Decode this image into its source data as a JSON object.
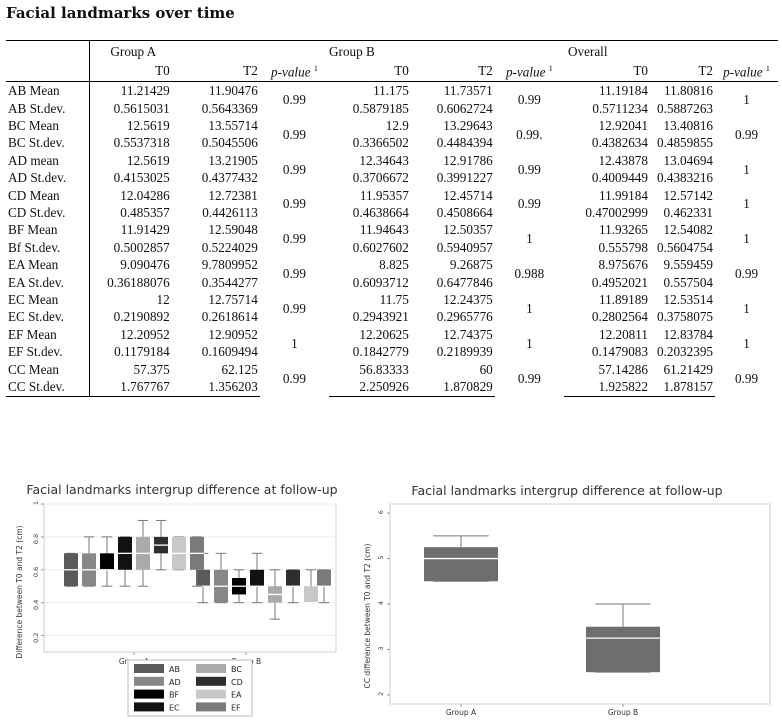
{
  "heading": "Facial landmarks over time",
  "table": {
    "groups": [
      "Group A",
      "Group B",
      "Overall"
    ],
    "subheaders": [
      "T0",
      "T2",
      "p-value",
      "T0",
      "T2",
      "p-value",
      "T0",
      "T2",
      "p-value"
    ],
    "pvalue_label": "p-value",
    "pvalue_sup": "1",
    "rows": [
      {
        "mean_label": "AB Mean",
        "sd_label": "AB St.dev.",
        "a_t0_mean": "11.21429",
        "a_t2_mean": "11.90476",
        "a_t0_sd": "0.5615031",
        "a_t2_sd": "0.5643369",
        "a_p": "0.99",
        "b_t0_mean": "11.175",
        "b_t2_mean": "11.73571",
        "b_t0_sd": "0.5879185",
        "b_t2_sd": "0.6062724",
        "b_p": "0.99",
        "o_t0_mean": "11.19184",
        "o_t2_mean": "11.80816",
        "o_t0_sd": "0.5711234",
        "o_t2_sd": "0.5887263",
        "o_p": "1"
      },
      {
        "mean_label": "BC Mean",
        "sd_label": "BC St.dev.",
        "a_t0_mean": "12.5619",
        "a_t2_mean": "13.55714",
        "a_t0_sd": "0.5537318",
        "a_t2_sd": "0.5045506",
        "a_p": "0.99",
        "b_t0_mean": "12.9",
        "b_t2_mean": "13.29643",
        "b_t0_sd": "0.3366502",
        "b_t2_sd": "0.4484394",
        "b_p": "0.99.",
        "o_t0_mean": "12.92041",
        "o_t2_mean": "13.40816",
        "o_t0_sd": "0.4382634",
        "o_t2_sd": "0.4859855",
        "o_p": "0.99"
      },
      {
        "mean_label": "AD mean",
        "sd_label": "AD St.dev.",
        "a_t0_mean": "12.5619",
        "a_t2_mean": "13.21905",
        "a_t0_sd": "0.4153025",
        "a_t2_sd": "0.4377432",
        "a_p": "0.99",
        "b_t0_mean": "12.34643",
        "b_t2_mean": "12.91786",
        "b_t0_sd": "0.3706672",
        "b_t2_sd": "0.3991227",
        "b_p": "0.99",
        "o_t0_mean": "12.43878",
        "o_t2_mean": "13.04694",
        "o_t0_sd": "0.4009449",
        "o_t2_sd": "0.4383216",
        "o_p": "1"
      },
      {
        "mean_label": "CD Mean",
        "sd_label": "CD St.dev.",
        "a_t0_mean": "12.04286",
        "a_t2_mean": "12.72381",
        "a_t0_sd": "0.485357",
        "a_t2_sd": "0.4426113",
        "a_p": "0.99",
        "b_t0_mean": "11.95357",
        "b_t2_mean": "12.45714",
        "b_t0_sd": "0.4638664",
        "b_t2_sd": "0.4508664",
        "b_p": "0.99",
        "o_t0_mean": "11.99184",
        "o_t2_mean": "12.57142",
        "o_t0_sd": "0.47002999",
        "o_t2_sd": "0.462331",
        "o_p": "1"
      },
      {
        "mean_label": "BF Mean",
        "sd_label": "Bf St.dev.",
        "a_t0_mean": "11.91429",
        "a_t2_mean": "12.59048",
        "a_t0_sd": "0.5002857",
        "a_t2_sd": "0.5224029",
        "a_p": "0.99",
        "b_t0_mean": "11.94643",
        "b_t2_mean": "12.50357",
        "b_t0_sd": "0.6027602",
        "b_t2_sd": "0.5940957",
        "b_p": "1",
        "o_t0_mean": "11.93265",
        "o_t2_mean": "12.54082",
        "o_t0_sd": "0.555798",
        "o_t2_sd": "0.5604754",
        "o_p": "1"
      },
      {
        "mean_label": "EA Mean",
        "sd_label": "EA St.dev.",
        "a_t0_mean": "9.090476",
        "a_t2_mean": "9.7809952",
        "a_t0_sd": "0.36188076",
        "a_t2_sd": "0.3544277",
        "a_p": "0.99",
        "b_t0_mean": "8.825",
        "b_t2_mean": "9.26875",
        "b_t0_sd": "0.6093712",
        "b_t2_sd": "0.6477846",
        "b_p": "0.988",
        "o_t0_mean": "8.975676",
        "o_t2_mean": "9.559459",
        "o_t0_sd": "0.4952021",
        "o_t2_sd": "0.557504",
        "o_p": "0.99"
      },
      {
        "mean_label": "EC Mean",
        "sd_label": "EC St.dev.",
        "a_t0_mean": "12",
        "a_t2_mean": "12.75714",
        "a_t0_sd": "0.2190892",
        "a_t2_sd": "0.2618614",
        "a_p": "0.99",
        "b_t0_mean": "11.75",
        "b_t2_mean": "12.24375",
        "b_t0_sd": "0.2943921",
        "b_t2_sd": "0.2965776",
        "b_p": "1",
        "o_t0_mean": "11.89189",
        "o_t2_mean": "12.53514",
        "o_t0_sd": "0.2802564",
        "o_t2_sd": "0.3758075",
        "o_p": "1"
      },
      {
        "mean_label": "EF Mean",
        "sd_label": "EF St.dev.",
        "a_t0_mean": "12.20952",
        "a_t2_mean": "12.90952",
        "a_t0_sd": "0.1179184",
        "a_t2_sd": "0.1609494",
        "a_p": "1",
        "b_t0_mean": "12.20625",
        "b_t2_mean": "12.74375",
        "b_t0_sd": "0.1842779",
        "b_t2_sd": "0.2189939",
        "b_p": "1",
        "o_t0_mean": "12.20811",
        "o_t2_mean": "12.83784",
        "o_t0_sd": "0.1479083",
        "o_t2_sd": "0.2032395",
        "o_p": "1"
      },
      {
        "mean_label": "CC Mean",
        "sd_label": "CC St.dev.",
        "a_t0_mean": "57.375",
        "a_t2_mean": "62.125",
        "a_t0_sd": "1.767767",
        "a_t2_sd": "1.356203",
        "a_p": "0.99",
        "b_t0_mean": "56.83333",
        "b_t2_mean": "60",
        "b_t0_sd": "2.250926",
        "b_t2_sd": "1.870829",
        "b_p": "0.99",
        "o_t0_mean": "57.14286",
        "o_t2_mean": "61.21429",
        "o_t0_sd": "1.925822",
        "o_t2_sd": "1.878157",
        "o_p": "0.99"
      }
    ]
  },
  "chart_data": [
    {
      "type": "box",
      "title": "Facial landmarks intergrup difference at follow-up",
      "ylabel": "Difference between T0 and T2 (cm)",
      "ylim": [
        0.1,
        1.0
      ],
      "yticks": [
        "0.2",
        "0.4",
        "0.6",
        "0.8",
        "1"
      ],
      "categories": [
        "Group A",
        "Group B"
      ],
      "legend_placement": "bottom",
      "series": [
        {
          "name": "AB",
          "color": "#5a5a5a",
          "boxes": [
            {
              "min": 0.5,
              "q1": 0.5,
              "median": 0.6,
              "q3": 0.7,
              "max": 0.7
            },
            {
              "min": 0.4,
              "q1": 0.5,
              "median": 0.5,
              "q3": 0.6,
              "max": 0.7
            }
          ]
        },
        {
          "name": "AD",
          "color": "#888888",
          "boxes": [
            {
              "min": 0.5,
              "q1": 0.5,
              "median": 0.6,
              "q3": 0.7,
              "max": 0.8
            },
            {
              "min": 0.4,
              "q1": 0.4,
              "median": 0.5,
              "q3": 0.6,
              "max": 0.7
            }
          ]
        },
        {
          "name": "BF",
          "color": "#000000",
          "boxes": [
            {
              "min": 0.5,
              "q1": 0.6,
              "median": 0.6,
              "q3": 0.7,
              "max": 0.8
            },
            {
              "min": 0.4,
              "q1": 0.45,
              "median": 0.5,
              "q3": 0.55,
              "max": 0.6
            }
          ]
        },
        {
          "name": "EC",
          "color": "#111111",
          "boxes": [
            {
              "min": 0.5,
              "q1": 0.6,
              "median": 0.7,
              "q3": 0.8,
              "max": 0.8
            },
            {
              "min": 0.4,
              "q1": 0.5,
              "median": 0.5,
              "q3": 0.6,
              "max": 0.7
            }
          ]
        },
        {
          "name": "BC",
          "color": "#aaaaaa",
          "boxes": [
            {
              "min": 0.5,
              "q1": 0.6,
              "median": 0.7,
              "q3": 0.8,
              "max": 0.9
            },
            {
              "min": 0.3,
              "q1": 0.4,
              "median": 0.45,
              "q3": 0.5,
              "max": 0.6
            }
          ]
        },
        {
          "name": "CD",
          "color": "#2e2e2e",
          "boxes": [
            {
              "min": 0.6,
              "q1": 0.7,
              "median": 0.75,
              "q3": 0.8,
              "max": 0.9
            },
            {
              "min": 0.4,
              "q1": 0.5,
              "median": 0.5,
              "q3": 0.6,
              "max": 0.6
            }
          ]
        },
        {
          "name": "EA",
          "color": "#c8c8c8",
          "boxes": [
            {
              "min": 0.6,
              "q1": 0.6,
              "median": 0.7,
              "q3": 0.8,
              "max": 0.8
            },
            {
              "min": 0.4,
              "q1": 0.4,
              "median": 0.4,
              "q3": 0.5,
              "max": 0.6
            }
          ]
        },
        {
          "name": "EF",
          "color": "#7a7a7a",
          "boxes": [
            {
              "min": 0.5,
              "q1": 0.6,
              "median": 0.7,
              "q3": 0.8,
              "max": 0.8
            },
            {
              "min": 0.4,
              "q1": 0.5,
              "median": 0.5,
              "q3": 0.6,
              "max": 0.6
            }
          ]
        }
      ],
      "legend_order": [
        "AB",
        "BC",
        "AD",
        "CD",
        "BF",
        "EA",
        "EC",
        "EF"
      ]
    },
    {
      "type": "box",
      "title": "Facial landmarks intergrup difference at follow-up",
      "ylabel": "CC difference between T0 and T2 (cm)",
      "ylim": [
        1.8,
        6.2
      ],
      "yticks": [
        "2",
        "3",
        "4",
        "5",
        "6"
      ],
      "categories": [
        "Group A",
        "Group B"
      ],
      "series": [
        {
          "color": "#6e6e6e",
          "boxes": [
            {
              "min": 4.5,
              "q1": 4.5,
              "median": 5,
              "q3": 5.25,
              "max": 5.5
            },
            {
              "min": 2.5,
              "q1": 2.5,
              "median": 3.25,
              "q3": 3.5,
              "max": 4
            }
          ]
        }
      ]
    }
  ]
}
